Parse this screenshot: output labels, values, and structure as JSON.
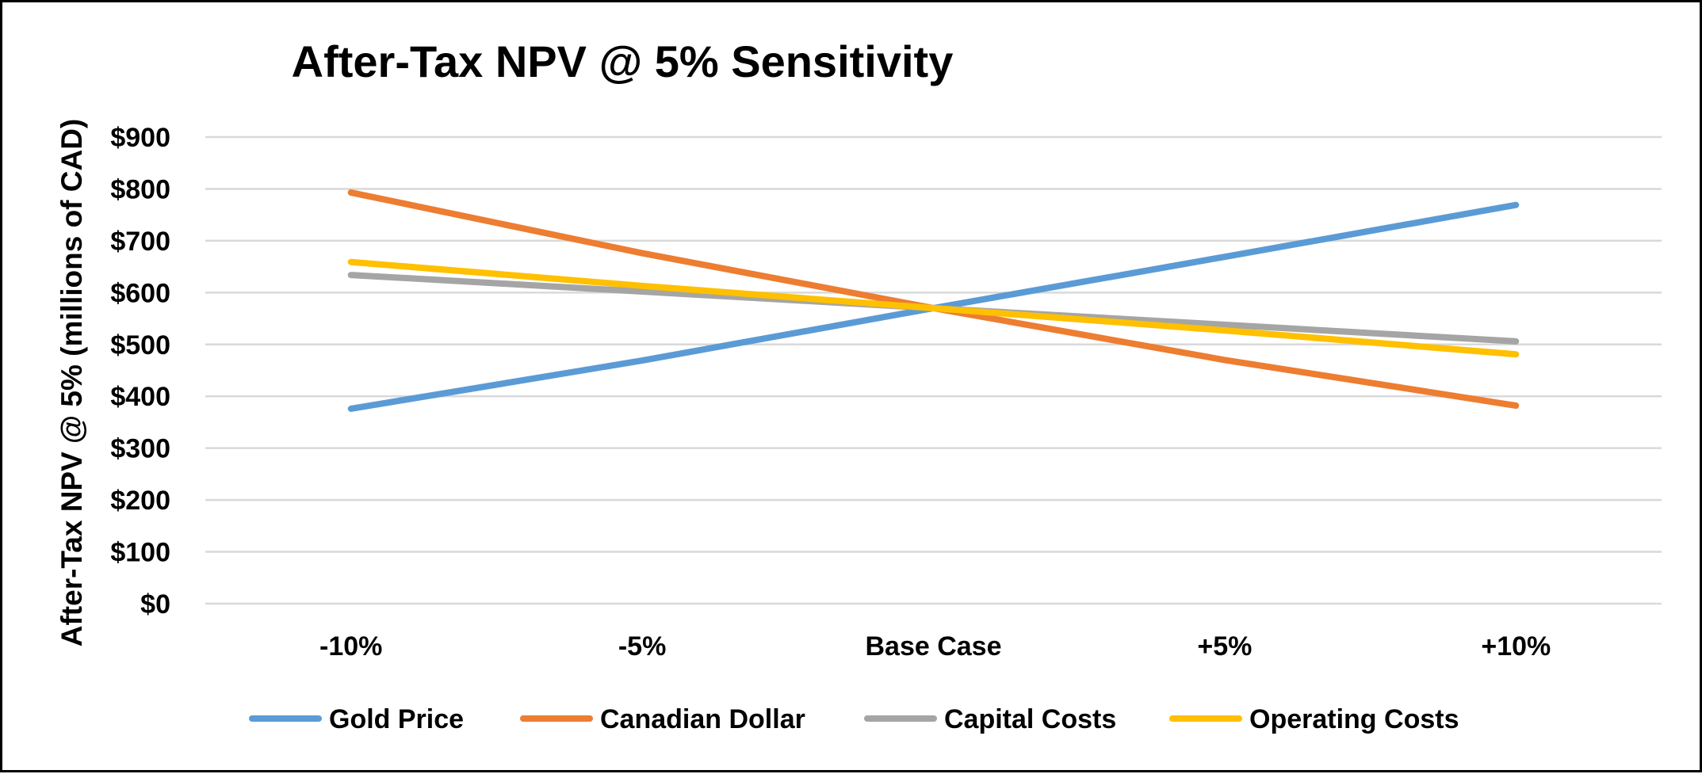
{
  "chart_data": {
    "type": "line",
    "title": "After-Tax NPV @ 5% Sensitivity",
    "xlabel": "",
    "ylabel": "After-Tax NPV @ 5% (millions of CAD)",
    "categories": [
      "-10%",
      "-5%",
      "Base Case",
      "+5%",
      "+10%"
    ],
    "y_ticks": [
      0,
      100,
      200,
      300,
      400,
      500,
      600,
      700,
      800,
      900
    ],
    "y_tick_labels": [
      "$0",
      "$100",
      "$200",
      "$300",
      "$400",
      "$500",
      "$600",
      "$700",
      "$800",
      "$900"
    ],
    "ylim": [
      0,
      900
    ],
    "grid": true,
    "legend_position": "bottom",
    "series": [
      {
        "name": "Gold Price",
        "color": "#5B9BD5",
        "values": [
          376,
          469,
          570,
          669,
          769
        ]
      },
      {
        "name": "Canadian Dollar",
        "color": "#ED7D31",
        "values": [
          793,
          676,
          570,
          470,
          382
        ]
      },
      {
        "name": "Capital Costs",
        "color": "#A5A5A5",
        "values": [
          634,
          602,
          570,
          538,
          506
        ]
      },
      {
        "name": "Operating Costs",
        "color": "#FFC000",
        "values": [
          659,
          613,
          570,
          527,
          481
        ]
      }
    ]
  }
}
